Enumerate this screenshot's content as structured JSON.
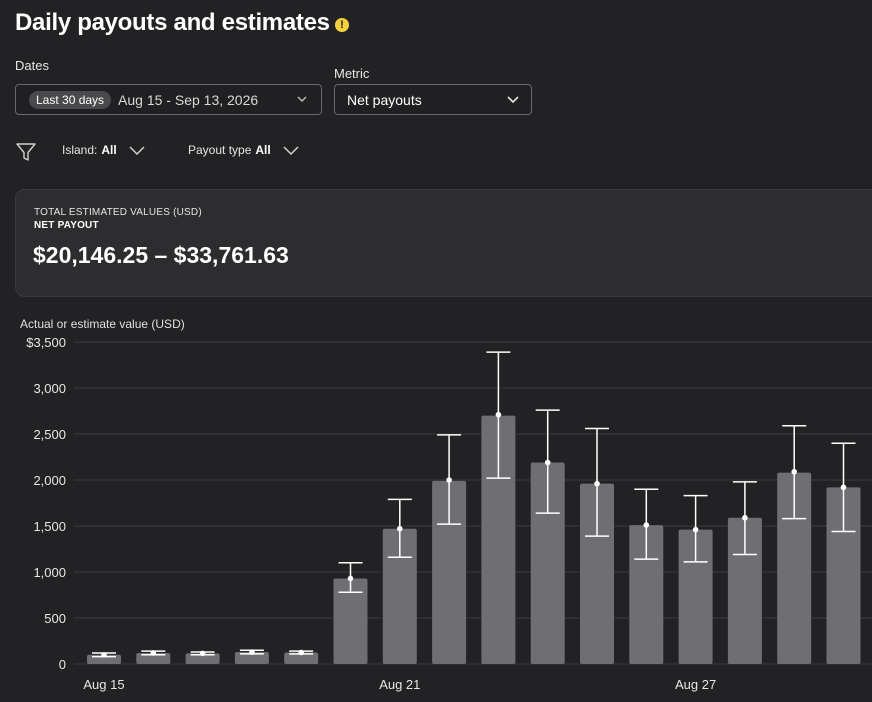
{
  "header": {
    "title": "Daily payouts and estimates",
    "info_icon": "info-icon",
    "info_color": "#f4d03f"
  },
  "filters": {
    "dates_label": "Dates",
    "range_chip": "Last 30 days",
    "date_range": "Aug 15 - Sep 13, 2026",
    "metric_label": "Metric",
    "metric_value": "Net payouts",
    "island_label": "Island:",
    "island_value": "All",
    "payout_type_label": "Payout type",
    "payout_type_value": "All"
  },
  "totals": {
    "caption": "TOTAL ESTIMATED VALUES (USD)",
    "metric": "NET PAYOUT",
    "value": "$20,146.25 – $33,761.63"
  },
  "chart_data": {
    "type": "bar",
    "ylabel": "Actual or estimate value (USD)",
    "ylim": [
      0,
      3500
    ],
    "yticks": [
      0,
      500,
      1000,
      1500,
      2000,
      2500,
      3000,
      3500
    ],
    "ytick_labels": [
      "0",
      "500",
      "1,000",
      "1,500",
      "2,000",
      "2,500",
      "3,000",
      "$3,500"
    ],
    "grid": true,
    "bar_color": "#6f6f73",
    "xtick_labels": [
      {
        "index": 0,
        "label": "Aug 15"
      },
      {
        "index": 6,
        "label": "Aug 21"
      },
      {
        "index": 12,
        "label": "Aug 27"
      }
    ],
    "categories": [
      "Aug 15",
      "Aug 16",
      "Aug 17",
      "Aug 18",
      "Aug 19",
      "Aug 20",
      "Aug 21",
      "Aug 22",
      "Aug 23",
      "Aug 24",
      "Aug 25",
      "Aug 26",
      "Aug 27",
      "Aug 28",
      "Aug 29",
      "Aug 30"
    ],
    "series": [
      {
        "values": [
          100,
          120,
          115,
          130,
          125,
          930,
          1470,
          1990,
          2700,
          2190,
          1960,
          1510,
          1460,
          1590,
          2080,
          1920
        ],
        "estimate": [
          100,
          120,
          115,
          130,
          125,
          930,
          1470,
          2000,
          2710,
          2190,
          1960,
          1510,
          1460,
          1590,
          2090,
          1920
        ],
        "lower": [
          80,
          100,
          100,
          110,
          110,
          780,
          1160,
          1520,
          2020,
          1640,
          1390,
          1140,
          1110,
          1190,
          1580,
          1440
        ],
        "upper": [
          120,
          140,
          130,
          150,
          140,
          1100,
          1790,
          2490,
          3390,
          2760,
          2560,
          1900,
          1830,
          1980,
          2590,
          2400
        ]
      }
    ]
  }
}
